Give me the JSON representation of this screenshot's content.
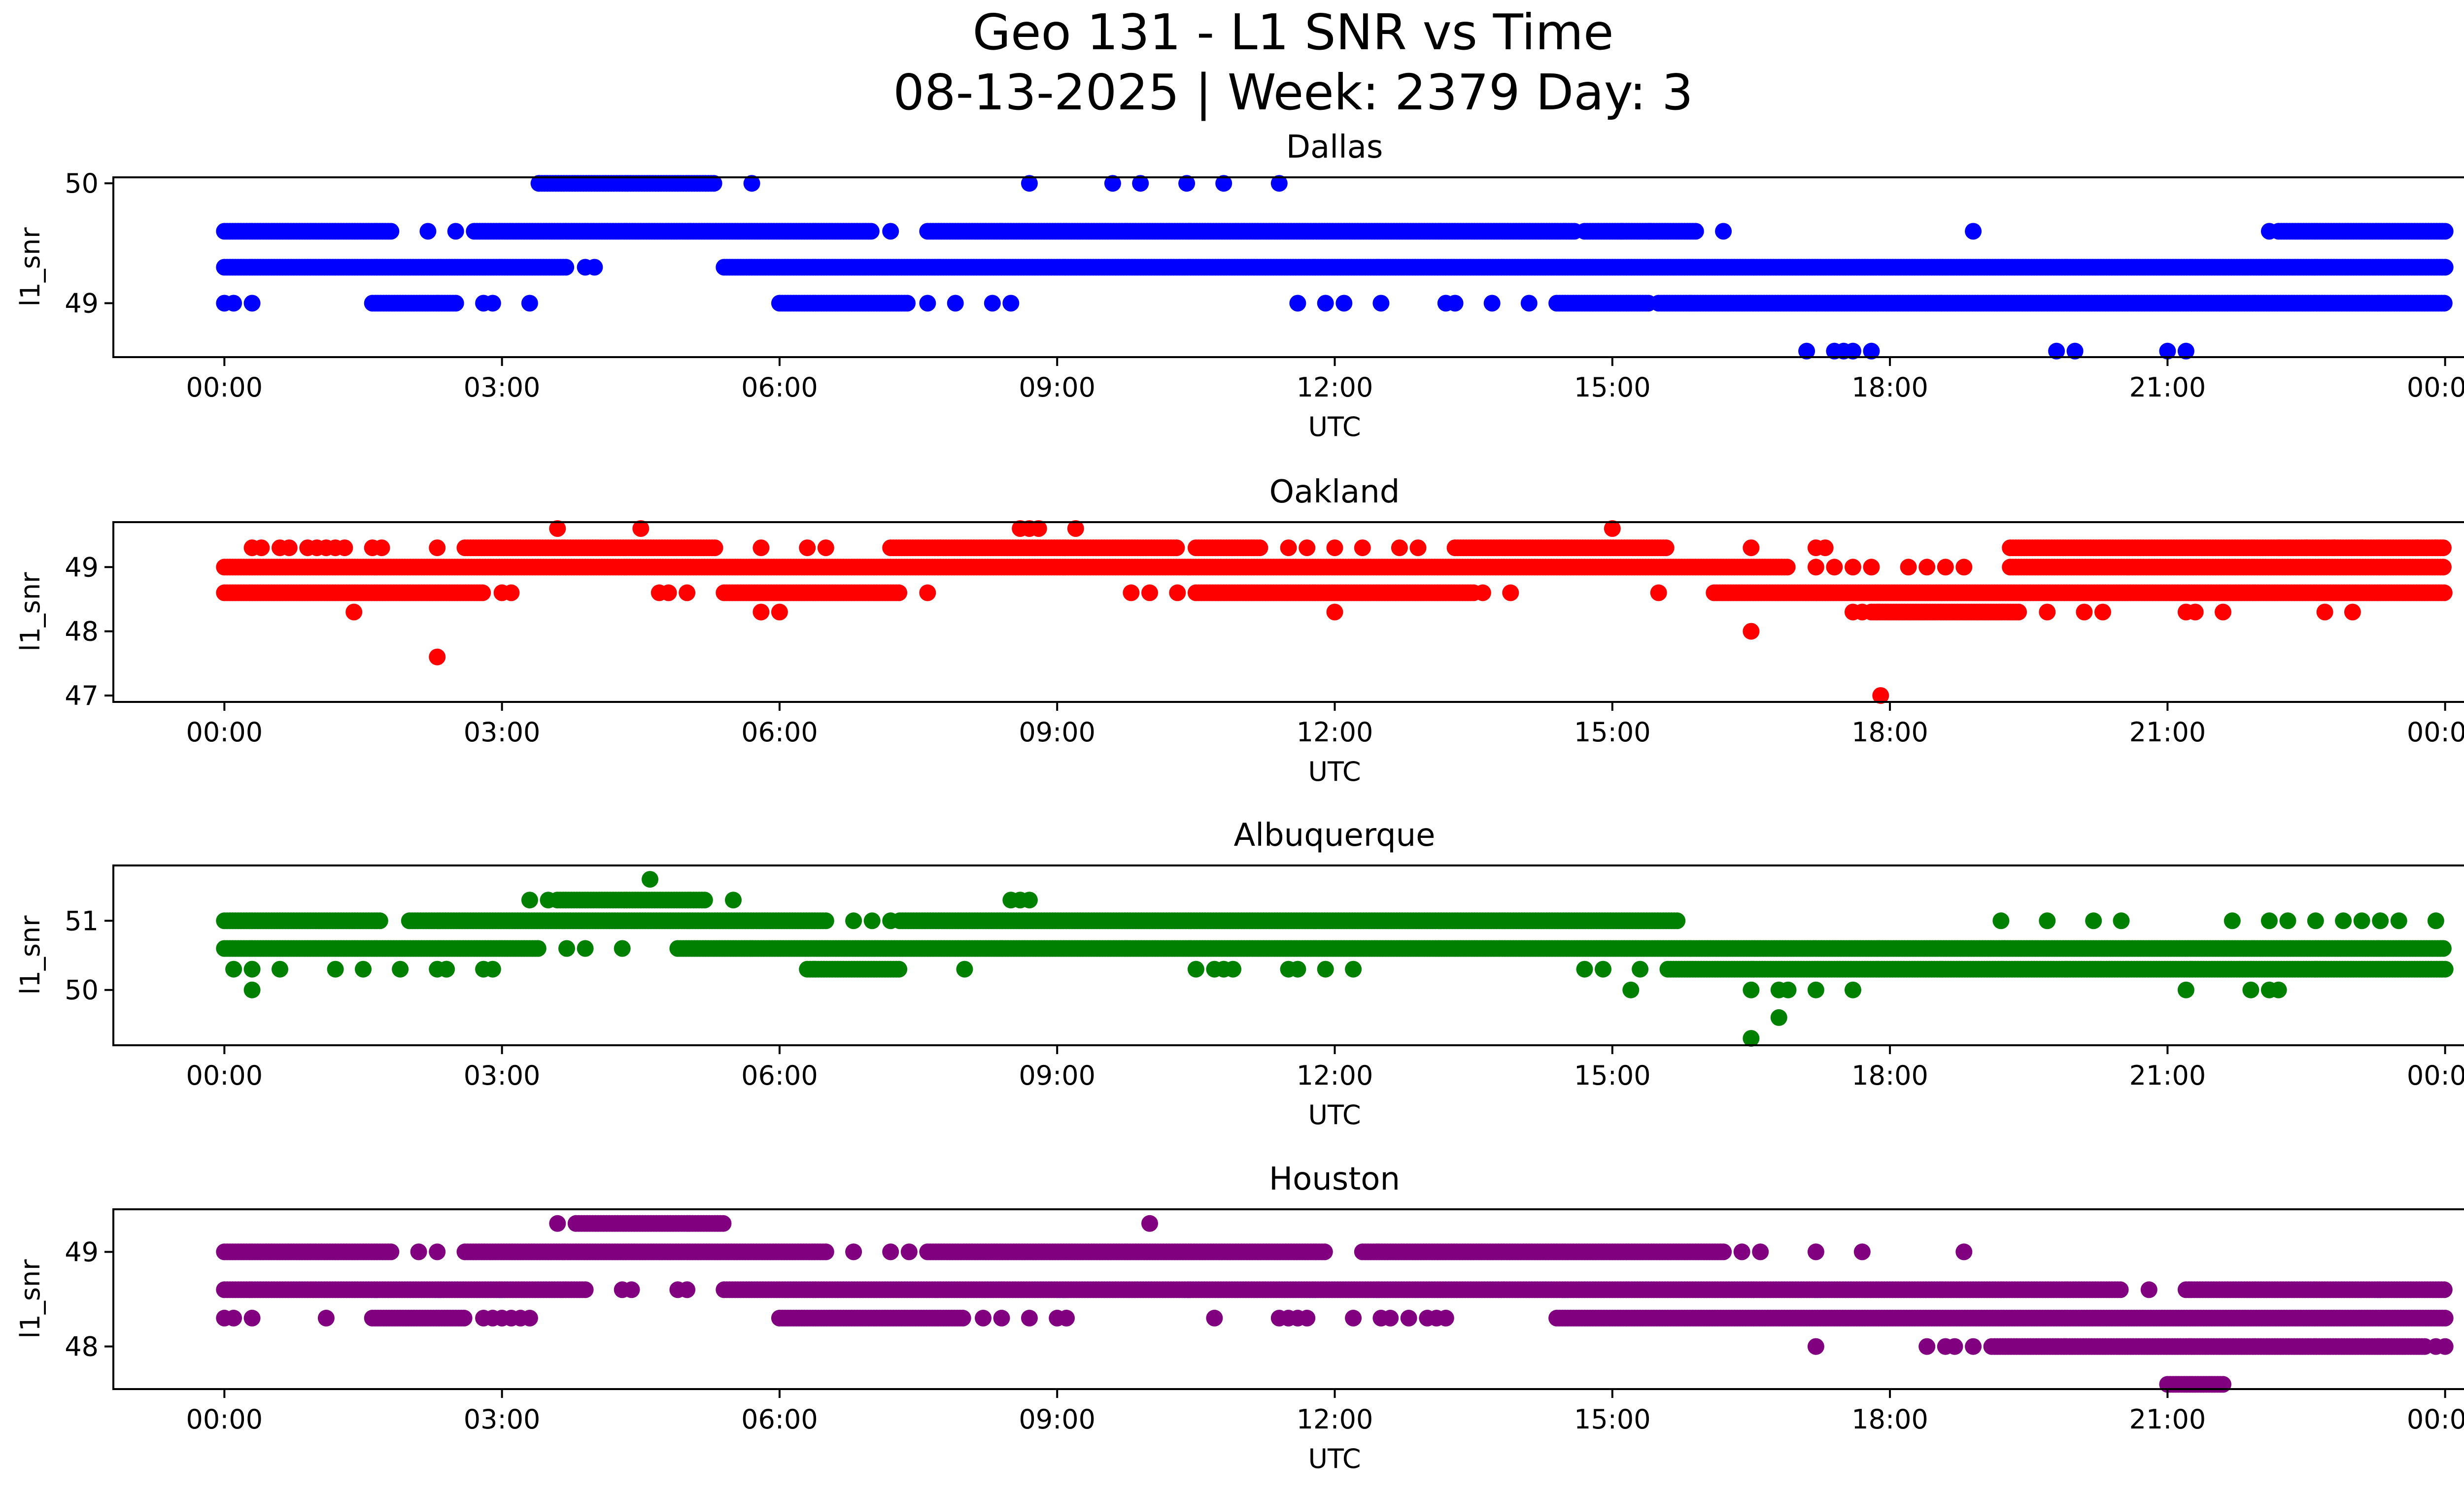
{
  "figure": {
    "title_line1": "Geo 131 - L1 SNR vs Time",
    "title_line2": "08-13-2025 | Week: 2379 Day: 3",
    "background": "#ffffff"
  },
  "chart_data": [
    {
      "type": "scatter",
      "title": "Dallas",
      "xlabel": "UTC",
      "ylabel": "l1_snr",
      "color": "#0000ff",
      "x_ticks": [
        "00:00",
        "03:00",
        "06:00",
        "09:00",
        "12:00",
        "15:00",
        "18:00",
        "21:00",
        "00:00"
      ],
      "y_ticks": [
        49,
        50
      ],
      "xlim_hours": [
        -1.2,
        25.2
      ],
      "ylim": [
        48.55,
        50.05
      ],
      "grid": false,
      "series": [
        {
          "y": 50.0,
          "ranges": [
            [
              3.4,
              5.3
            ]
          ],
          "points": [
            3.4,
            5.7,
            8.7,
            9.6,
            9.9,
            10.4,
            10.8,
            11.4
          ]
        },
        {
          "y": 49.6,
          "ranges": [
            [
              0.0,
              1.8
            ],
            [
              2.7,
              7.0
            ],
            [
              7.6,
              14.6
            ],
            [
              14.7,
              15.9
            ],
            [
              22.2,
              24.0
            ]
          ],
          "points": [
            2.2,
            2.5,
            7.2,
            15.1,
            15.4,
            16.2,
            18.9,
            22.1
          ]
        },
        {
          "y": 49.3,
          "ranges": [
            [
              0.0,
              3.7
            ],
            [
              5.4,
              24.0
            ]
          ],
          "points": [
            3.9,
            4.0
          ]
        },
        {
          "y": 49.0,
          "ranges": [
            [
              1.6,
              2.5
            ],
            [
              6.0,
              7.4
            ],
            [
              14.4,
              15.4
            ],
            [
              15.5,
              24.0
            ]
          ],
          "points": [
            0.0,
            0.1,
            0.3,
            2.8,
            2.9,
            3.3,
            7.6,
            7.9,
            8.3,
            8.5,
            11.6,
            11.9,
            12.1,
            12.5,
            13.2,
            13.3,
            13.7,
            14.1
          ]
        },
        {
          "y": 48.6,
          "ranges": [],
          "points": [
            17.1,
            17.4,
            17.5,
            17.6,
            17.8,
            19.8,
            20.0,
            21.0,
            21.2
          ]
        }
      ]
    },
    {
      "type": "scatter",
      "title": "Oakland",
      "xlabel": "UTC",
      "ylabel": "l1_snr",
      "color": "#ff0000",
      "x_ticks": [
        "00:00",
        "03:00",
        "06:00",
        "09:00",
        "12:00",
        "15:00",
        "18:00",
        "21:00",
        "00:00"
      ],
      "y_ticks": [
        47,
        48,
        49
      ],
      "xlim_hours": [
        -1.2,
        25.2
      ],
      "ylim": [
        46.9,
        49.7
      ],
      "grid": false,
      "series": [
        {
          "y": 49.6,
          "ranges": [],
          "points": [
            3.6,
            4.5,
            8.6,
            8.7,
            8.8,
            9.2,
            15.0
          ]
        },
        {
          "y": 49.3,
          "ranges": [
            [
              2.6,
              5.3
            ],
            [
              7.2,
              10.3
            ],
            [
              10.5,
              11.2
            ],
            [
              13.3,
              15.6
            ],
            [
              19.3,
              24.0
            ]
          ],
          "points": [
            0.3,
            0.4,
            0.6,
            0.7,
            0.9,
            1.0,
            1.1,
            1.2,
            1.3,
            1.6,
            1.7,
            2.3,
            5.8,
            6.3,
            6.5,
            11.5,
            11.7,
            12.0,
            12.3,
            12.7,
            12.9,
            16.5,
            17.2,
            17.3,
            22.2,
            22.5,
            22.8,
            23.1,
            23.7,
            23.9
          ]
        },
        {
          "y": 49.0,
          "ranges": [
            [
              0.0,
              16.9
            ],
            [
              19.3,
              24.0
            ]
          ],
          "points": [
            17.2,
            17.4,
            17.6,
            17.8,
            18.2,
            18.4,
            18.6,
            18.8
          ]
        },
        {
          "y": 48.6,
          "ranges": [
            [
              0.0,
              2.8
            ],
            [
              5.4,
              7.3
            ],
            [
              10.5,
              13.5
            ],
            [
              16.1,
              24.0
            ]
          ],
          "points": [
            3.0,
            3.1,
            4.7,
            4.8,
            5.0,
            7.6,
            9.8,
            10.0,
            10.3,
            13.6,
            13.9,
            15.5
          ]
        },
        {
          "y": 48.3,
          "ranges": [
            [
              17.8,
              19.4
            ]
          ],
          "points": [
            1.4,
            5.8,
            6.0,
            12.0,
            17.6,
            17.7,
            19.7,
            20.1,
            20.3,
            21.2,
            21.3,
            21.6,
            22.7,
            23.0
          ]
        },
        {
          "y": 48.0,
          "ranges": [],
          "points": [
            16.5
          ]
        },
        {
          "y": 47.6,
          "ranges": [],
          "points": [
            2.3
          ]
        },
        {
          "y": 47.0,
          "ranges": [],
          "points": [
            17.9
          ]
        }
      ]
    },
    {
      "type": "scatter",
      "title": "Albuquerque",
      "xlabel": "UTC",
      "ylabel": "l1_snr",
      "color": "#008000",
      "x_ticks": [
        "00:00",
        "03:00",
        "06:00",
        "09:00",
        "12:00",
        "15:00",
        "18:00",
        "21:00",
        "00:00"
      ],
      "y_ticks": [
        50,
        51
      ],
      "xlim_hours": [
        -1.2,
        25.2
      ],
      "ylim": [
        49.2,
        51.8
      ],
      "grid": false,
      "series": [
        {
          "y": 51.6,
          "ranges": [],
          "points": [
            4.6
          ]
        },
        {
          "y": 51.3,
          "ranges": [
            [
              3.6,
              5.2
            ]
          ],
          "points": [
            3.3,
            3.5,
            5.5,
            8.5,
            8.6,
            8.7
          ]
        },
        {
          "y": 51.0,
          "ranges": [
            [
              0.0,
              1.7
            ],
            [
              2.0,
              6.5
            ],
            [
              7.3,
              15.7
            ]
          ],
          "points": [
            6.8,
            7.0,
            7.2,
            19.2,
            19.7,
            20.2,
            20.5,
            21.7,
            22.1,
            22.3,
            22.6,
            22.9,
            23.1,
            23.3,
            23.5,
            23.9
          ]
        },
        {
          "y": 50.6,
          "ranges": [
            [
              0.0,
              3.4
            ],
            [
              4.9,
              24.0
            ]
          ],
          "points": [
            3.7,
            3.9,
            4.3
          ]
        },
        {
          "y": 50.3,
          "ranges": [
            [
              6.3,
              7.3
            ],
            [
              15.6,
              24.0
            ]
          ],
          "points": [
            0.1,
            0.3,
            0.6,
            1.2,
            1.5,
            1.9,
            2.3,
            2.4,
            2.4,
            2.8,
            2.9,
            8.0,
            10.5,
            10.7,
            10.8,
            10.9,
            11.5,
            11.6,
            11.9,
            12.2,
            14.7,
            14.9,
            15.3
          ]
        },
        {
          "y": 50.0,
          "ranges": [],
          "points": [
            0.3,
            15.2,
            16.5,
            16.8,
            16.9,
            17.2,
            17.6,
            21.2,
            21.9,
            22.1,
            22.2
          ]
        },
        {
          "y": 49.6,
          "ranges": [],
          "points": [
            16.8
          ]
        },
        {
          "y": 49.3,
          "ranges": [],
          "points": [
            16.5
          ]
        }
      ]
    },
    {
      "type": "scatter",
      "title": "Houston",
      "xlabel": "UTC",
      "ylabel": "l1_snr",
      "color": "#800080",
      "x_ticks": [
        "00:00",
        "03:00",
        "06:00",
        "09:00",
        "12:00",
        "15:00",
        "18:00",
        "21:00",
        "00:00"
      ],
      "y_ticks": [
        48,
        49
      ],
      "xlim_hours": [
        -1.2,
        25.2
      ],
      "ylim": [
        47.55,
        49.45
      ],
      "grid": false,
      "series": [
        {
          "y": 49.3,
          "ranges": [
            [
              3.8,
              5.4
            ]
          ],
          "points": [
            3.6,
            10.0
          ]
        },
        {
          "y": 49.0,
          "ranges": [
            [
              0.0,
              1.8
            ],
            [
              2.6,
              6.5
            ],
            [
              7.6,
              11.9
            ],
            [
              12.3,
              16.2
            ]
          ],
          "points": [
            2.1,
            2.3,
            6.8,
            7.2,
            7.4,
            16.4,
            16.6,
            17.2,
            17.7,
            18.8
          ]
        },
        {
          "y": 48.6,
          "ranges": [
            [
              0.0,
              3.9
            ],
            [
              5.4,
              20.5
            ],
            [
              21.2,
              24.0
            ]
          ],
          "points": [
            4.3,
            4.4,
            4.9,
            5.0,
            20.8
          ]
        },
        {
          "y": 48.3,
          "ranges": [
            [
              1.6,
              2.6
            ],
            [
              6.0,
              8.0
            ],
            [
              14.4,
              24.0
            ]
          ],
          "points": [
            0.0,
            0.1,
            0.3,
            1.1,
            2.8,
            2.9,
            3.0,
            3.1,
            3.2,
            3.3,
            8.2,
            8.4,
            8.7,
            9.0,
            9.1,
            10.7,
            11.4,
            11.5,
            11.6,
            11.7,
            12.2,
            12.5,
            12.6,
            12.8,
            13.0,
            13.1,
            13.2
          ]
        },
        {
          "y": 48.0,
          "ranges": [
            [
              19.1,
              23.8
            ]
          ],
          "points": [
            17.2,
            18.4,
            18.6,
            18.7,
            18.9,
            23.9,
            24.0
          ]
        },
        {
          "y": 47.6,
          "ranges": [
            [
              21.0,
              21.6
            ]
          ],
          "points": []
        }
      ]
    }
  ]
}
